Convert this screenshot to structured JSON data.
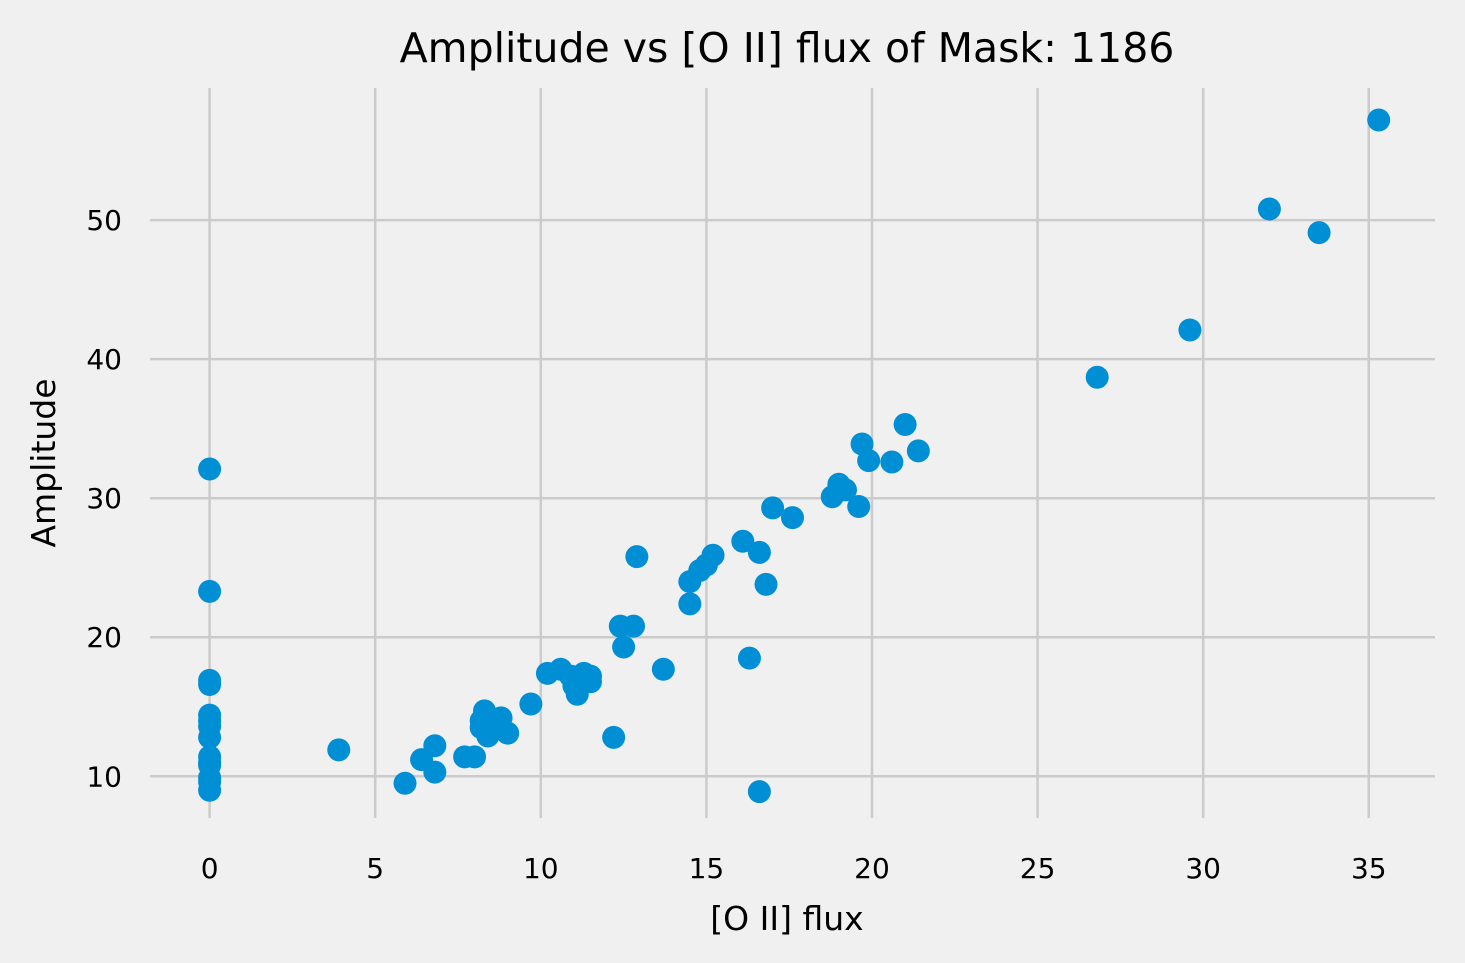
{
  "chart_data": {
    "type": "scatter",
    "title": "Amplitude vs [O II] flux of Mask: 1186",
    "xlabel": "[O II] flux",
    "ylabel": "Amplitude",
    "xlim": [
      -1.8,
      37.0
    ],
    "ylim": [
      7.0,
      59.5
    ],
    "xticks": [
      0,
      5,
      10,
      15,
      20,
      25,
      30,
      35
    ],
    "yticks": [
      10,
      20,
      30,
      40,
      50
    ],
    "xtick_labels": [
      "0",
      "5",
      "10",
      "15",
      "20",
      "25",
      "30",
      "35"
    ],
    "ytick_labels": [
      "10",
      "20",
      "30",
      "40",
      "50"
    ],
    "grid": true,
    "point_color": "#008fd5",
    "background_color": "#f0f0f0",
    "grid_color": "#cbcbcb",
    "series": [
      {
        "points": [
          [
            0.0,
            32.1
          ],
          [
            0.0,
            23.3
          ],
          [
            0.0,
            16.9
          ],
          [
            0.0,
            16.6
          ],
          [
            0.0,
            14.4
          ],
          [
            0.0,
            14.0
          ],
          [
            0.0,
            13.6
          ],
          [
            0.0,
            12.8
          ],
          [
            0.0,
            11.4
          ],
          [
            0.0,
            11.0
          ],
          [
            0.0,
            10.8
          ],
          [
            0.0,
            9.9
          ],
          [
            0.0,
            9.6
          ],
          [
            0.0,
            9.0
          ],
          [
            3.9,
            11.9
          ],
          [
            5.9,
            9.5
          ],
          [
            6.4,
            11.2
          ],
          [
            6.8,
            12.2
          ],
          [
            6.8,
            10.3
          ],
          [
            7.7,
            11.4
          ],
          [
            8.0,
            11.4
          ],
          [
            8.2,
            14.0
          ],
          [
            8.3,
            14.7
          ],
          [
            8.2,
            13.5
          ],
          [
            8.4,
            12.9
          ],
          [
            8.6,
            13.7
          ],
          [
            8.8,
            14.2
          ],
          [
            9.0,
            13.1
          ],
          [
            9.7,
            15.2
          ],
          [
            10.2,
            17.4
          ],
          [
            10.6,
            17.7
          ],
          [
            10.9,
            17.2
          ],
          [
            11.0,
            16.5
          ],
          [
            11.1,
            15.9
          ],
          [
            11.3,
            17.4
          ],
          [
            11.5,
            16.8
          ],
          [
            11.5,
            17.2
          ],
          [
            12.2,
            12.8
          ],
          [
            12.4,
            20.8
          ],
          [
            12.5,
            19.3
          ],
          [
            12.8,
            20.8
          ],
          [
            12.9,
            25.8
          ],
          [
            13.7,
            17.7
          ],
          [
            14.5,
            24.0
          ],
          [
            14.5,
            22.4
          ],
          [
            14.8,
            24.8
          ],
          [
            15.0,
            25.2
          ],
          [
            15.2,
            25.9
          ],
          [
            16.1,
            26.9
          ],
          [
            16.3,
            18.5
          ],
          [
            16.6,
            26.1
          ],
          [
            16.6,
            8.9
          ],
          [
            16.8,
            23.8
          ],
          [
            17.0,
            29.3
          ],
          [
            17.6,
            28.6
          ],
          [
            18.8,
            30.1
          ],
          [
            19.0,
            31.0
          ],
          [
            19.2,
            30.6
          ],
          [
            19.6,
            29.4
          ],
          [
            19.7,
            33.9
          ],
          [
            19.9,
            32.7
          ],
          [
            20.6,
            32.6
          ],
          [
            21.0,
            35.3
          ],
          [
            21.4,
            33.4
          ],
          [
            26.8,
            38.7
          ],
          [
            29.6,
            42.1
          ],
          [
            32.0,
            50.8
          ],
          [
            33.5,
            49.1
          ],
          [
            35.3,
            57.2
          ]
        ]
      }
    ]
  }
}
